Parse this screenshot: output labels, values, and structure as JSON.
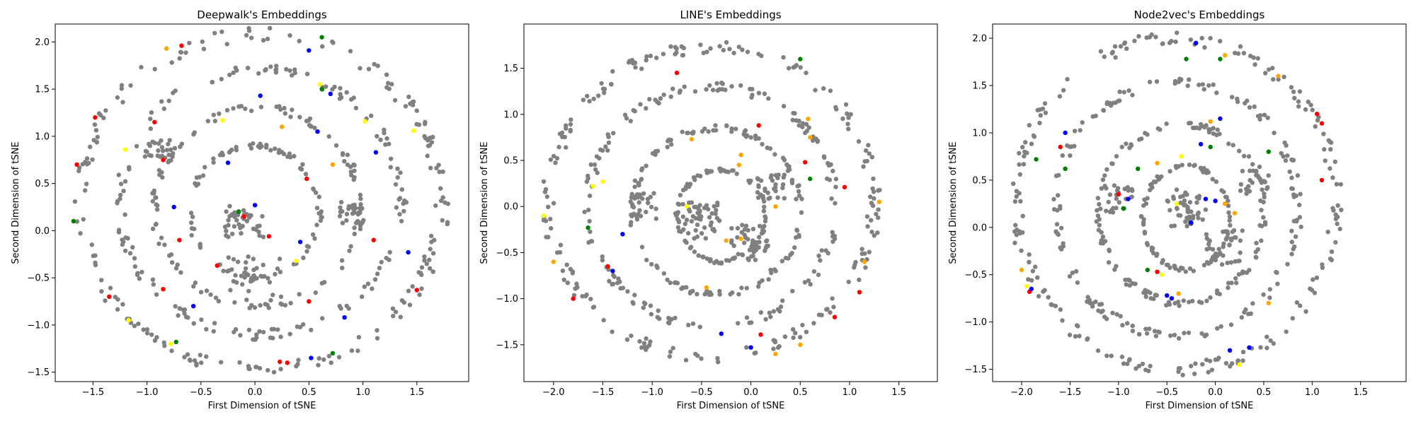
{
  "colors": {
    "base": "#808080",
    "highlights": [
      "#ff0000",
      "#0000ff",
      "#008000",
      "#ffff00",
      "#ffa500"
    ]
  },
  "chart_data": [
    {
      "type": "scatter",
      "title": "Deepwalk's Embeddings",
      "xlabel": "First Dimension of tSNE",
      "ylabel": "Second Dimension of tSNE",
      "xlim": [
        -1.85,
        1.98
      ],
      "ylim": [
        -1.6,
        2.19
      ],
      "xticks": [
        -1.5,
        -1.0,
        -0.5,
        0.0,
        0.5,
        1.0,
        1.5
      ],
      "yticks": [
        -1.5,
        -1.0,
        -0.5,
        0.0,
        0.5,
        1.0,
        1.5,
        2.0
      ],
      "rings": [
        {
          "cx": 0.05,
          "cy": 0.3,
          "rx": 1.68,
          "ry": 1.78,
          "n": 190
        },
        {
          "cx": 0.05,
          "cy": 0.3,
          "rx": 1.3,
          "ry": 1.4,
          "n": 150
        },
        {
          "cx": 0.02,
          "cy": 0.25,
          "rx": 0.95,
          "ry": 1.05,
          "n": 120
        },
        {
          "cx": 0.0,
          "cy": 0.2,
          "rx": 0.6,
          "ry": 0.7,
          "n": 90
        }
      ],
      "clusters": [
        {
          "x": -0.1,
          "y": 0.1,
          "spread": 0.18,
          "n": 40
        },
        {
          "x": 0.0,
          "y": -0.5,
          "spread": 0.25,
          "n": 30
        },
        {
          "x": 0.9,
          "y": 0.2,
          "spread": 0.12,
          "n": 25
        },
        {
          "x": -0.9,
          "y": 0.9,
          "spread": 0.12,
          "n": 20
        }
      ],
      "highlighted": [
        {
          "x": -0.68,
          "y": 1.96,
          "color": "#ff0000"
        },
        {
          "x": -0.82,
          "y": 1.93,
          "color": "#ffa500"
        },
        {
          "x": 0.5,
          "y": 1.91,
          "color": "#0000ff"
        },
        {
          "x": 0.62,
          "y": 2.05,
          "color": "#008000"
        },
        {
          "x": -1.48,
          "y": 1.2,
          "color": "#ff0000"
        },
        {
          "x": -1.2,
          "y": 0.86,
          "color": "#ffff00"
        },
        {
          "x": -0.93,
          "y": 1.15,
          "color": "#ff0000"
        },
        {
          "x": -0.3,
          "y": 1.17,
          "color": "#ffff00"
        },
        {
          "x": 0.05,
          "y": 1.43,
          "color": "#0000ff"
        },
        {
          "x": 0.25,
          "y": 1.1,
          "color": "#ffa500"
        },
        {
          "x": 0.6,
          "y": 1.55,
          "color": "#ffff00"
        },
        {
          "x": 0.7,
          "y": 1.45,
          "color": "#0000ff"
        },
        {
          "x": 0.62,
          "y": 1.5,
          "color": "#008000"
        },
        {
          "x": 1.02,
          "y": 1.16,
          "color": "#ffff00"
        },
        {
          "x": 1.47,
          "y": 1.06,
          "color": "#ffff00"
        },
        {
          "x": -1.65,
          "y": 0.7,
          "color": "#ff0000"
        },
        {
          "x": -0.85,
          "y": 0.75,
          "color": "#ff0000"
        },
        {
          "x": -0.75,
          "y": 0.25,
          "color": "#0000ff"
        },
        {
          "x": -0.25,
          "y": 0.72,
          "color": "#0000ff"
        },
        {
          "x": -0.15,
          "y": 0.2,
          "color": "#008000"
        },
        {
          "x": -0.1,
          "y": 0.15,
          "color": "#ff0000"
        },
        {
          "x": 0.0,
          "y": 0.27,
          "color": "#0000ff"
        },
        {
          "x": 0.13,
          "y": -0.06,
          "color": "#ff0000"
        },
        {
          "x": 0.48,
          "y": 0.55,
          "color": "#ff0000"
        },
        {
          "x": 0.72,
          "y": 0.7,
          "color": "#ffa500"
        },
        {
          "x": 0.58,
          "y": 1.05,
          "color": "#0000ff"
        },
        {
          "x": 1.12,
          "y": 0.83,
          "color": "#0000ff"
        },
        {
          "x": 1.42,
          "y": -0.23,
          "color": "#0000ff"
        },
        {
          "x": 0.42,
          "y": -0.12,
          "color": "#0000ff"
        },
        {
          "x": 0.38,
          "y": -0.32,
          "color": "#ffff00"
        },
        {
          "x": -0.7,
          "y": -0.1,
          "color": "#ff0000"
        },
        {
          "x": -0.35,
          "y": -0.37,
          "color": "#ff0000"
        },
        {
          "x": -1.35,
          "y": -0.7,
          "color": "#ff0000"
        },
        {
          "x": -0.85,
          "y": -0.62,
          "color": "#ff0000"
        },
        {
          "x": -0.57,
          "y": -0.8,
          "color": "#0000ff"
        },
        {
          "x": -1.17,
          "y": -0.95,
          "color": "#ffff00"
        },
        {
          "x": -0.73,
          "y": -1.18,
          "color": "#008000"
        },
        {
          "x": -0.78,
          "y": -1.2,
          "color": "#ffff00"
        },
        {
          "x": 0.23,
          "y": -1.39,
          "color": "#ff0000"
        },
        {
          "x": 0.3,
          "y": -1.4,
          "color": "#ff0000"
        },
        {
          "x": 0.52,
          "y": -1.35,
          "color": "#0000ff"
        },
        {
          "x": 0.72,
          "y": -1.3,
          "color": "#008000"
        },
        {
          "x": 0.83,
          "y": -0.92,
          "color": "#0000ff"
        },
        {
          "x": 0.5,
          "y": -0.75,
          "color": "#ff0000"
        },
        {
          "x": 1.5,
          "y": -0.63,
          "color": "#ff0000"
        },
        {
          "x": 1.1,
          "y": -0.1,
          "color": "#ff0000"
        },
        {
          "x": -1.68,
          "y": 0.1,
          "color": "#008000"
        }
      ]
    },
    {
      "type": "scatter",
      "title": "LINE's Embeddings",
      "xlabel": "First Dimension of tSNE",
      "ylabel": "Second Dimension of tSNE",
      "xlim": [
        -2.3,
        1.89
      ],
      "ylim": [
        -1.9,
        1.98
      ],
      "xticks": [
        -2.0,
        -1.5,
        -1.0,
        -0.5,
        0.0,
        0.5,
        1.0,
        1.5
      ],
      "yticks": [
        -1.5,
        -1.0,
        -0.5,
        0.0,
        0.5,
        1.0,
        1.5
      ],
      "rings": [
        {
          "cx": -0.4,
          "cy": 0.05,
          "rx": 1.65,
          "ry": 1.68,
          "n": 200
        },
        {
          "cx": -0.4,
          "cy": 0.0,
          "rx": 1.25,
          "ry": 1.3,
          "n": 160
        },
        {
          "cx": -0.35,
          "cy": -0.05,
          "rx": 0.85,
          "ry": 0.9,
          "n": 130
        },
        {
          "cx": -0.3,
          "cy": -0.1,
          "rx": 0.45,
          "ry": 0.5,
          "n": 90
        }
      ],
      "clusters": [
        {
          "x": -0.5,
          "y": -0.15,
          "spread": 0.2,
          "n": 50
        },
        {
          "x": 0.0,
          "y": -0.4,
          "spread": 0.2,
          "n": 40
        },
        {
          "x": -1.1,
          "y": 0.0,
          "spread": 0.15,
          "n": 25
        },
        {
          "x": 0.2,
          "y": 0.2,
          "spread": 0.15,
          "n": 30
        }
      ],
      "highlighted": [
        {
          "x": -0.75,
          "y": 1.45,
          "color": "#ff0000"
        },
        {
          "x": 0.5,
          "y": 1.6,
          "color": "#008000"
        },
        {
          "x": -1.5,
          "y": 0.27,
          "color": "#ffff00"
        },
        {
          "x": -1.6,
          "y": 0.22,
          "color": "#ffff00"
        },
        {
          "x": -2.1,
          "y": -0.1,
          "color": "#ffff00"
        },
        {
          "x": -2.0,
          "y": -0.6,
          "color": "#ffa500"
        },
        {
          "x": -1.65,
          "y": -0.23,
          "color": "#008000"
        },
        {
          "x": -1.3,
          "y": -0.3,
          "color": "#0000ff"
        },
        {
          "x": -1.4,
          "y": -0.7,
          "color": "#0000ff"
        },
        {
          "x": -1.45,
          "y": -0.65,
          "color": "#ff0000"
        },
        {
          "x": -1.8,
          "y": -1.0,
          "color": "#ff0000"
        },
        {
          "x": -0.6,
          "y": 0.73,
          "color": "#ffa500"
        },
        {
          "x": -0.1,
          "y": 0.56,
          "color": "#ffa500"
        },
        {
          "x": 0.08,
          "y": 0.88,
          "color": "#ff0000"
        },
        {
          "x": 0.58,
          "y": 0.95,
          "color": "#ffa500"
        },
        {
          "x": 0.6,
          "y": 0.75,
          "color": "#ffa500"
        },
        {
          "x": 0.6,
          "y": 0.3,
          "color": "#008000"
        },
        {
          "x": 0.55,
          "y": 0.48,
          "color": "#ff0000"
        },
        {
          "x": 0.95,
          "y": 0.21,
          "color": "#ff0000"
        },
        {
          "x": 1.3,
          "y": 0.05,
          "color": "#ffa500"
        },
        {
          "x": 1.15,
          "y": -0.6,
          "color": "#ffa500"
        },
        {
          "x": 1.1,
          "y": -0.93,
          "color": "#ff0000"
        },
        {
          "x": 0.85,
          "y": -1.2,
          "color": "#ff0000"
        },
        {
          "x": 0.5,
          "y": -1.5,
          "color": "#ffa500"
        },
        {
          "x": 0.25,
          "y": -1.6,
          "color": "#ffa500"
        },
        {
          "x": -0.3,
          "y": -1.38,
          "color": "#0000ff"
        },
        {
          "x": 0.0,
          "y": -1.53,
          "color": "#0000ff"
        },
        {
          "x": 0.1,
          "y": -1.39,
          "color": "#ff0000"
        },
        {
          "x": -0.45,
          "y": -0.88,
          "color": "#ffa500"
        },
        {
          "x": -0.25,
          "y": -0.37,
          "color": "#ffa500"
        },
        {
          "x": -0.1,
          "y": -0.35,
          "color": "#ffa500"
        },
        {
          "x": -0.12,
          "y": 0.45,
          "color": "#ffa500"
        },
        {
          "x": 0.25,
          "y": 0.0,
          "color": "#ffa500"
        },
        {
          "x": -0.65,
          "y": 0.0,
          "color": "#ffff00"
        }
      ]
    },
    {
      "type": "scatter",
      "title": "Node2vec's Embeddings",
      "xlabel": "First Dimension of tSNE",
      "ylabel": "Second Dimension of tSNE",
      "xlim": [
        -2.3,
        1.97
      ],
      "ylim": [
        -1.63,
        2.15
      ],
      "xticks": [
        -2.0,
        -1.5,
        -1.0,
        -0.5,
        0.0,
        0.5,
        1.0,
        1.5
      ],
      "yticks": [
        -1.5,
        -1.0,
        -0.5,
        0.0,
        0.5,
        1.0,
        1.5,
        2.0
      ],
      "rings": [
        {
          "cx": -0.4,
          "cy": 0.25,
          "rx": 1.65,
          "ry": 1.75,
          "n": 200
        },
        {
          "cx": -0.4,
          "cy": 0.2,
          "rx": 1.25,
          "ry": 1.35,
          "n": 160
        },
        {
          "cx": -0.35,
          "cy": 0.15,
          "rx": 0.85,
          "ry": 0.95,
          "n": 130
        },
        {
          "cx": -0.3,
          "cy": 0.1,
          "rx": 0.45,
          "ry": 0.55,
          "n": 90
        }
      ],
      "clusters": [
        {
          "x": -0.3,
          "y": 0.2,
          "spread": 0.2,
          "n": 45
        },
        {
          "x": 0.1,
          "y": -0.2,
          "spread": 0.2,
          "n": 35
        },
        {
          "x": -1.0,
          "y": 0.3,
          "spread": 0.15,
          "n": 25
        },
        {
          "x": 0.4,
          "y": 0.5,
          "spread": 0.15,
          "n": 25
        }
      ],
      "highlighted": [
        {
          "x": -0.2,
          "y": 1.95,
          "color": "#0000ff"
        },
        {
          "x": -0.3,
          "y": 1.78,
          "color": "#008000"
        },
        {
          "x": 0.05,
          "y": 1.78,
          "color": "#008000"
        },
        {
          "x": 0.1,
          "y": 1.82,
          "color": "#ffa500"
        },
        {
          "x": 0.65,
          "y": 1.6,
          "color": "#ffa500"
        },
        {
          "x": 1.05,
          "y": 1.2,
          "color": "#ff0000"
        },
        {
          "x": 1.1,
          "y": 1.1,
          "color": "#ff0000"
        },
        {
          "x": -1.55,
          "y": 1.0,
          "color": "#0000ff"
        },
        {
          "x": -1.6,
          "y": 0.85,
          "color": "#ff0000"
        },
        {
          "x": -1.85,
          "y": 0.72,
          "color": "#008000"
        },
        {
          "x": -1.55,
          "y": 0.62,
          "color": "#008000"
        },
        {
          "x": -0.05,
          "y": 1.12,
          "color": "#ffa500"
        },
        {
          "x": 0.05,
          "y": 1.15,
          "color": "#0000ff"
        },
        {
          "x": -0.15,
          "y": 0.88,
          "color": "#0000ff"
        },
        {
          "x": -0.05,
          "y": 0.85,
          "color": "#008000"
        },
        {
          "x": -0.8,
          "y": 0.62,
          "color": "#008000"
        },
        {
          "x": -0.6,
          "y": 0.68,
          "color": "#ffa500"
        },
        {
          "x": -0.35,
          "y": 0.75,
          "color": "#ffff00"
        },
        {
          "x": -1.0,
          "y": 0.35,
          "color": "#ff0000"
        },
        {
          "x": -0.95,
          "y": 0.2,
          "color": "#008000"
        },
        {
          "x": -0.9,
          "y": 0.3,
          "color": "#0000ff"
        },
        {
          "x": -0.4,
          "y": 0.25,
          "color": "#ffff00"
        },
        {
          "x": -0.1,
          "y": 0.3,
          "color": "#0000ff"
        },
        {
          "x": 0.0,
          "y": 0.28,
          "color": "#0000ff"
        },
        {
          "x": 0.1,
          "y": 0.25,
          "color": "#ffa500"
        },
        {
          "x": -0.25,
          "y": 0.05,
          "color": "#0000ff"
        },
        {
          "x": 0.2,
          "y": 0.15,
          "color": "#ffa500"
        },
        {
          "x": -2.0,
          "y": -0.45,
          "color": "#ffa500"
        },
        {
          "x": -1.95,
          "y": -0.62,
          "color": "#ffff00"
        },
        {
          "x": -1.92,
          "y": -0.68,
          "color": "#ff0000"
        },
        {
          "x": -1.9,
          "y": -0.65,
          "color": "#0000ff"
        },
        {
          "x": -0.7,
          "y": -0.45,
          "color": "#008000"
        },
        {
          "x": -0.6,
          "y": -0.47,
          "color": "#ff0000"
        },
        {
          "x": -0.55,
          "y": -0.5,
          "color": "#ffff00"
        },
        {
          "x": -0.5,
          "y": -0.72,
          "color": "#0000ff"
        },
        {
          "x": -0.45,
          "y": -0.75,
          "color": "#0000ff"
        },
        {
          "x": -0.38,
          "y": -0.7,
          "color": "#ffa500"
        },
        {
          "x": 0.55,
          "y": -0.8,
          "color": "#ffa500"
        },
        {
          "x": 0.15,
          "y": -1.3,
          "color": "#0000ff"
        },
        {
          "x": 0.35,
          "y": -1.27,
          "color": "#0000ff"
        },
        {
          "x": 0.25,
          "y": -1.45,
          "color": "#ffff00"
        },
        {
          "x": 1.1,
          "y": 0.5,
          "color": "#ff0000"
        },
        {
          "x": 0.55,
          "y": 0.8,
          "color": "#008000"
        }
      ]
    }
  ]
}
